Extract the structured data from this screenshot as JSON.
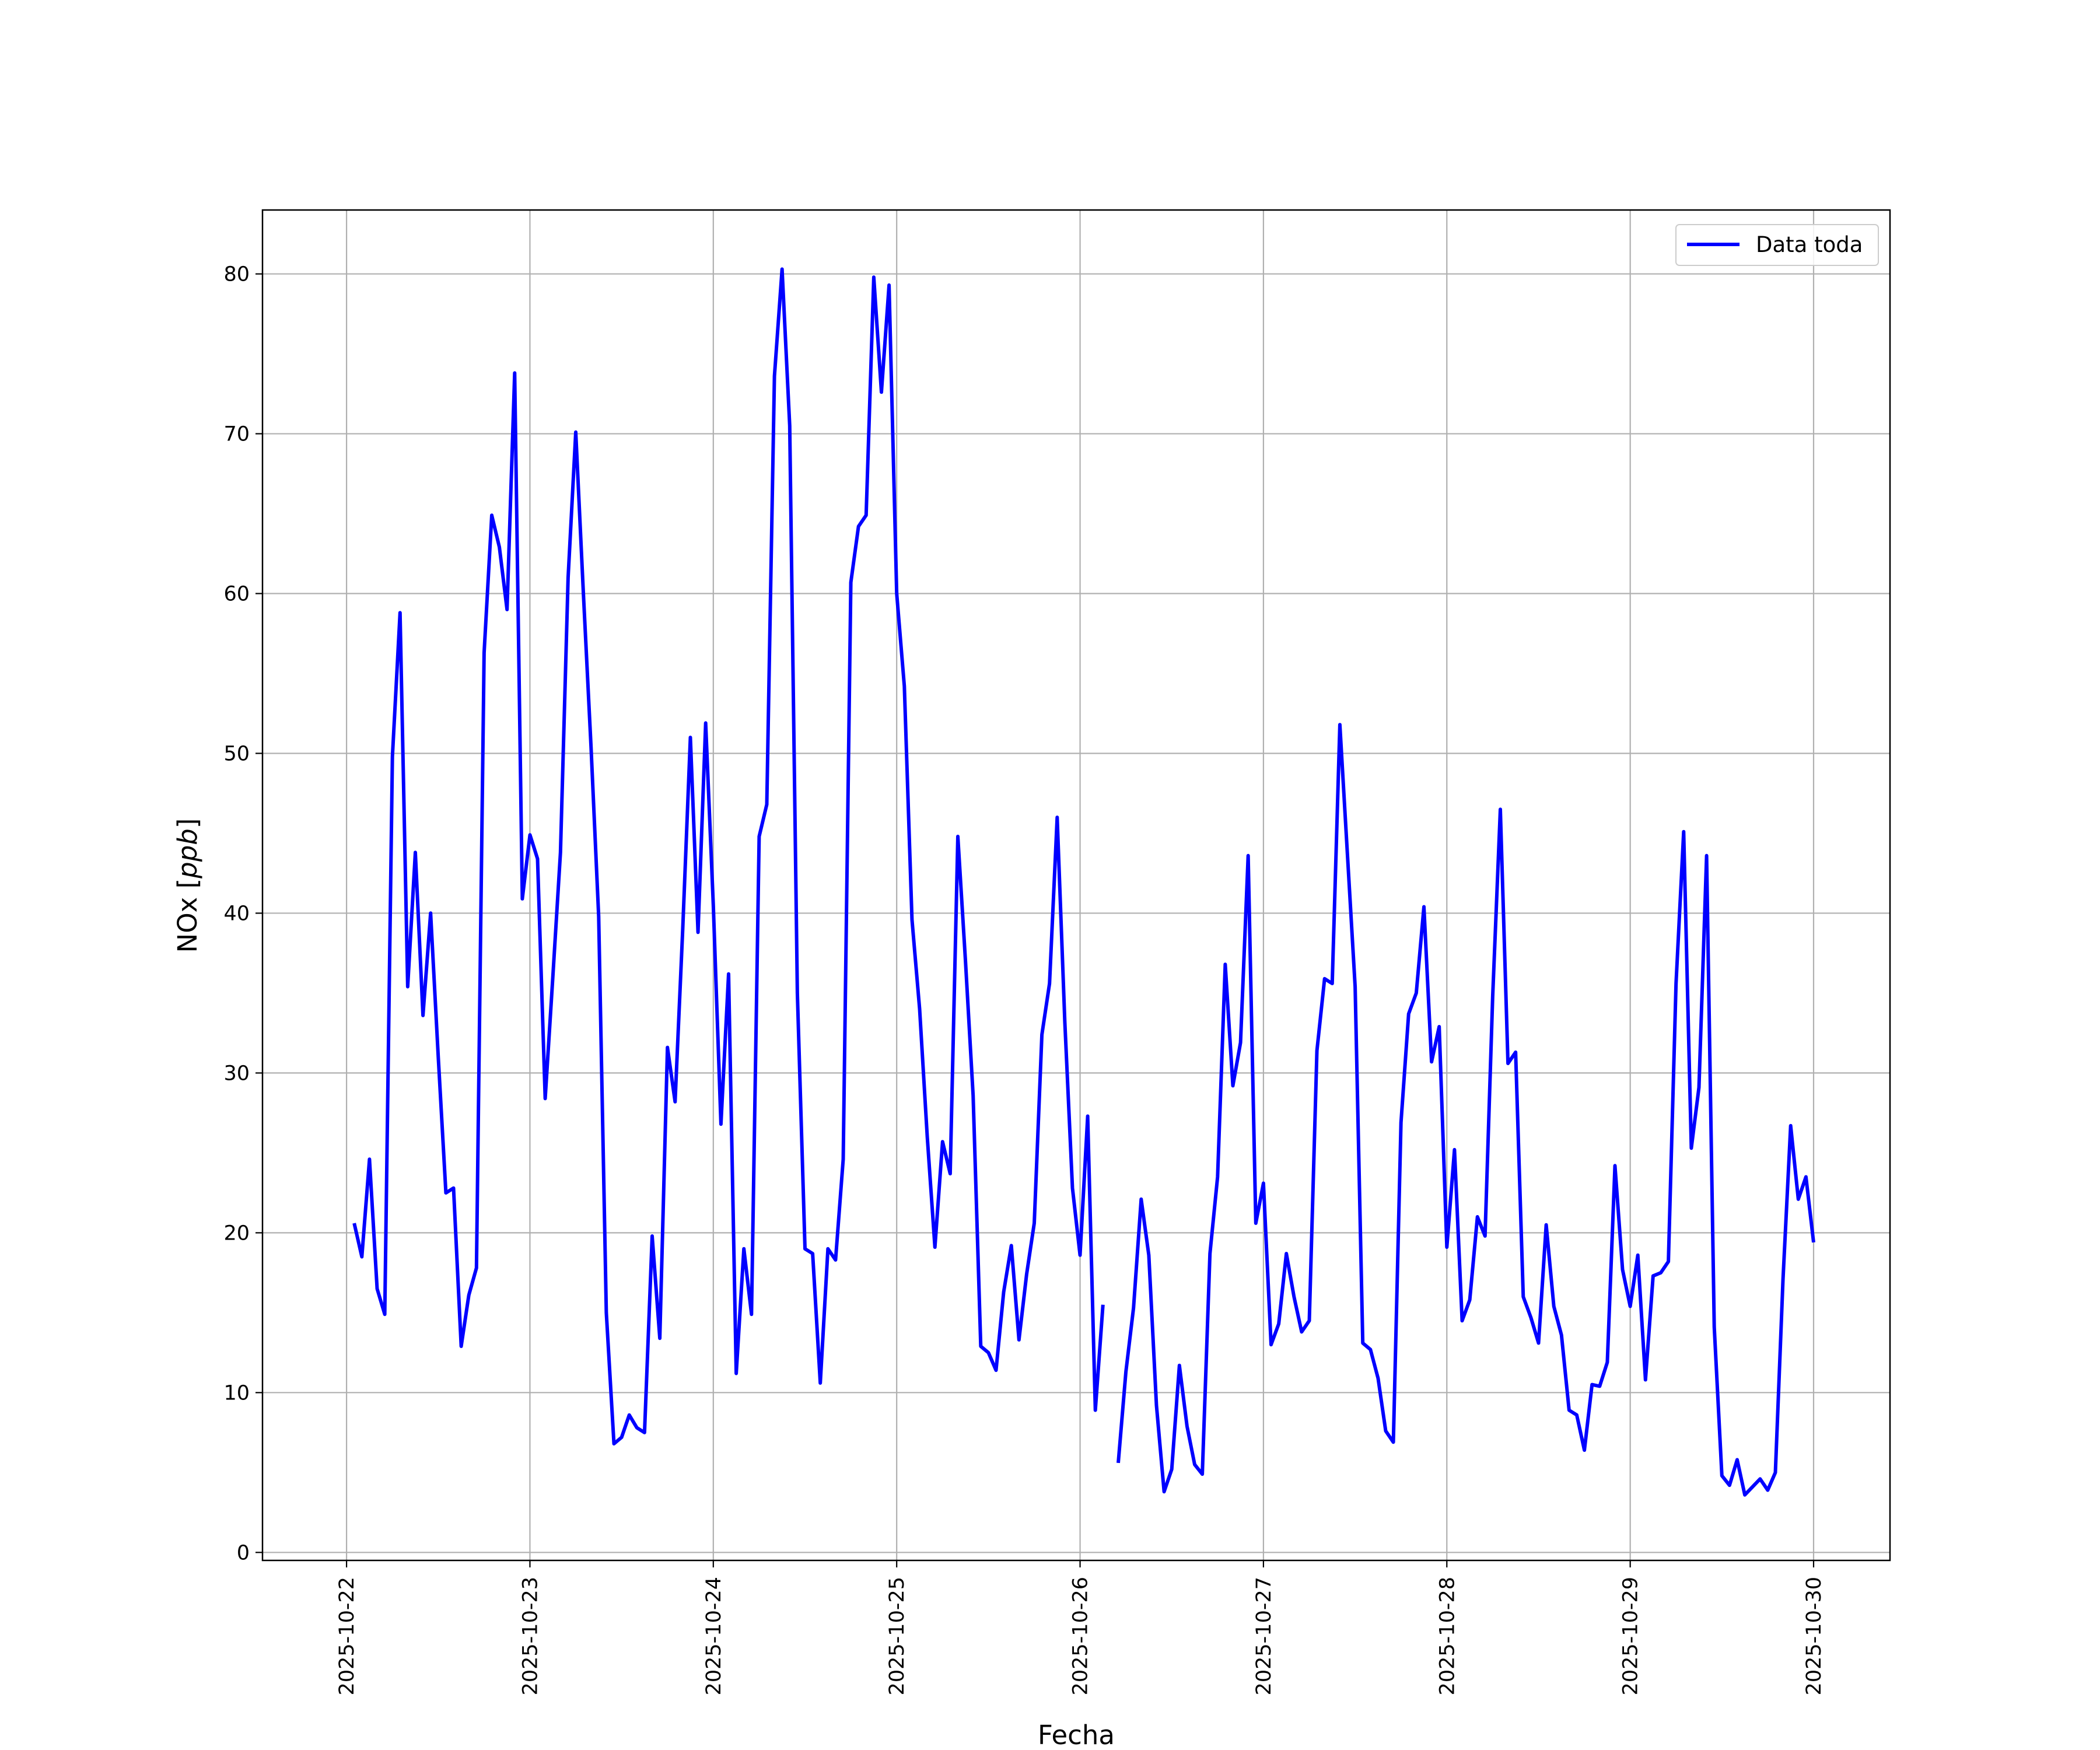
{
  "chart_data": {
    "type": "line",
    "xlabel": "Fecha",
    "ylabel_prefix": "NOx [",
    "ylabel_unit": "ppb",
    "ylabel_suffix": "]",
    "ylim": [
      -0.5,
      84
    ],
    "xlim": [
      "2025-10-21T13:00",
      "2025-10-30T10:00"
    ],
    "grid": true,
    "legend_position": "top-right",
    "y_ticks": [
      0,
      10,
      20,
      30,
      40,
      50,
      60,
      70,
      80
    ],
    "x_ticks": [
      "2025-10-22",
      "2025-10-23",
      "2025-10-24",
      "2025-10-25",
      "2025-10-26",
      "2025-10-27",
      "2025-10-28",
      "2025-10-29",
      "2025-10-30"
    ],
    "series": [
      {
        "name": "Data toda",
        "color": "#0000ff",
        "x": [
          "2025-10-22T01:00",
          "2025-10-22T02:00",
          "2025-10-22T03:00",
          "2025-10-22T04:00",
          "2025-10-22T05:00",
          "2025-10-22T06:00",
          "2025-10-22T07:00",
          "2025-10-22T08:00",
          "2025-10-22T09:00",
          "2025-10-22T10:00",
          "2025-10-22T11:00",
          "2025-10-22T12:00",
          "2025-10-22T13:00",
          "2025-10-22T14:00",
          "2025-10-22T15:00",
          "2025-10-22T16:00",
          "2025-10-22T17:00",
          "2025-10-22T18:00",
          "2025-10-22T19:00",
          "2025-10-22T20:00",
          "2025-10-22T21:00",
          "2025-10-22T22:00",
          "2025-10-22T23:00",
          "2025-10-23T00:00",
          "2025-10-23T01:00",
          "2025-10-23T02:00",
          "2025-10-23T03:00",
          "2025-10-23T04:00",
          "2025-10-23T05:00",
          "2025-10-23T06:00",
          "2025-10-23T07:00",
          "2025-10-23T08:00",
          "2025-10-23T09:00",
          "2025-10-23T10:00",
          "2025-10-23T11:00",
          "2025-10-23T12:00",
          "2025-10-23T13:00",
          "2025-10-23T14:00",
          "2025-10-23T15:00",
          "2025-10-23T16:00",
          "2025-10-23T17:00",
          "2025-10-23T18:00",
          "2025-10-23T19:00",
          "2025-10-23T20:00",
          "2025-10-23T21:00",
          "2025-10-23T22:00",
          "2025-10-23T23:00",
          "2025-10-24T00:00",
          "2025-10-24T01:00",
          "2025-10-24T02:00",
          "2025-10-24T03:00",
          "2025-10-24T04:00",
          "2025-10-24T05:00",
          "2025-10-24T06:00",
          "2025-10-24T07:00",
          "2025-10-24T08:00",
          "2025-10-24T09:00",
          "2025-10-24T10:00",
          "2025-10-24T11:00",
          "2025-10-24T12:00",
          "2025-10-24T13:00",
          "2025-10-24T14:00",
          "2025-10-24T15:00",
          "2025-10-24T16:00",
          "2025-10-24T17:00",
          "2025-10-24T18:00",
          "2025-10-24T19:00",
          "2025-10-24T20:00",
          "2025-10-24T21:00",
          "2025-10-24T22:00",
          "2025-10-24T23:00",
          "2025-10-25T00:00",
          "2025-10-25T01:00",
          "2025-10-25T02:00",
          "2025-10-25T03:00",
          "2025-10-25T04:00",
          "2025-10-25T05:00",
          "2025-10-25T06:00",
          "2025-10-25T07:00",
          "2025-10-25T08:00",
          "2025-10-25T09:00",
          "2025-10-25T10:00",
          "2025-10-25T11:00",
          "2025-10-25T12:00",
          "2025-10-25T13:00",
          "2025-10-25T14:00",
          "2025-10-25T15:00",
          "2025-10-25T16:00",
          "2025-10-25T17:00",
          "2025-10-25T18:00",
          "2025-10-25T19:00",
          "2025-10-25T20:00",
          "2025-10-25T21:00",
          "2025-10-25T22:00",
          "2025-10-25T23:00",
          "2025-10-26T00:00",
          "2025-10-26T01:00",
          "2025-10-26T02:00",
          "2025-10-26T03:00",
          "2025-10-26T04:00",
          "2025-10-26T05:00",
          "2025-10-26T06:00",
          "2025-10-26T07:00",
          "2025-10-26T08:00",
          "2025-10-26T09:00",
          "2025-10-26T10:00",
          "2025-10-26T11:00",
          "2025-10-26T12:00",
          "2025-10-26T13:00",
          "2025-10-26T14:00",
          "2025-10-26T15:00",
          "2025-10-26T16:00",
          "2025-10-26T17:00",
          "2025-10-26T18:00",
          "2025-10-26T19:00",
          "2025-10-26T20:00",
          "2025-10-26T21:00",
          "2025-10-26T22:00",
          "2025-10-26T23:00",
          "2025-10-27T00:00",
          "2025-10-27T01:00",
          "2025-10-27T02:00",
          "2025-10-27T03:00",
          "2025-10-27T04:00",
          "2025-10-27T05:00",
          "2025-10-27T06:00",
          "2025-10-27T07:00",
          "2025-10-27T08:00",
          "2025-10-27T09:00",
          "2025-10-27T10:00",
          "2025-10-27T11:00",
          "2025-10-27T12:00",
          "2025-10-27T13:00",
          "2025-10-27T14:00",
          "2025-10-27T15:00",
          "2025-10-27T16:00",
          "2025-10-27T17:00",
          "2025-10-27T18:00",
          "2025-10-27T19:00",
          "2025-10-27T20:00",
          "2025-10-27T21:00",
          "2025-10-27T22:00",
          "2025-10-27T23:00",
          "2025-10-28T00:00",
          "2025-10-28T01:00",
          "2025-10-28T02:00",
          "2025-10-28T03:00",
          "2025-10-28T04:00",
          "2025-10-28T05:00",
          "2025-10-28T06:00",
          "2025-10-28T07:00",
          "2025-10-28T08:00",
          "2025-10-28T09:00",
          "2025-10-28T10:00",
          "2025-10-28T11:00",
          "2025-10-28T12:00",
          "2025-10-28T13:00",
          "2025-10-28T14:00",
          "2025-10-28T15:00",
          "2025-10-28T16:00",
          "2025-10-28T17:00",
          "2025-10-28T18:00",
          "2025-10-28T19:00",
          "2025-10-28T20:00",
          "2025-10-28T21:00",
          "2025-10-28T22:00",
          "2025-10-28T23:00",
          "2025-10-29T00:00",
          "2025-10-29T01:00",
          "2025-10-29T02:00",
          "2025-10-29T03:00",
          "2025-10-29T04:00",
          "2025-10-29T05:00",
          "2025-10-29T06:00",
          "2025-10-29T07:00",
          "2025-10-29T08:00",
          "2025-10-29T09:00",
          "2025-10-29T10:00",
          "2025-10-29T11:00",
          "2025-10-29T12:00",
          "2025-10-29T13:00",
          "2025-10-29T14:00",
          "2025-10-29T15:00",
          "2025-10-29T16:00",
          "2025-10-29T17:00",
          "2025-10-29T18:00",
          "2025-10-29T19:00",
          "2025-10-29T20:00",
          "2025-10-29T21:00",
          "2025-10-29T22:00",
          "2025-10-29T23:00",
          "2025-10-30T00:00"
        ],
        "y": [
          20.6,
          18.5,
          24.6,
          16.5,
          14.9,
          49.8,
          58.8,
          35.4,
          43.8,
          33.6,
          40.0,
          31.0,
          22.5,
          22.8,
          12.9,
          16.1,
          17.8,
          56.3,
          64.9,
          62.9,
          59.0,
          73.8,
          40.9,
          44.9,
          43.4,
          28.4,
          36.0,
          43.8,
          61.0,
          70.1,
          60.0,
          50.4,
          39.8,
          15.0,
          6.8,
          7.2,
          8.6,
          7.8,
          7.5,
          19.8,
          13.4,
          31.6,
          28.2,
          39.0,
          51.0,
          38.8,
          51.9,
          40.5,
          26.8,
          36.2,
          11.2,
          19.0,
          14.9,
          44.8,
          46.8,
          73.6,
          80.3,
          70.5,
          35.0,
          19.0,
          18.7,
          10.6,
          19.0,
          18.3,
          24.6,
          60.7,
          64.2,
          64.9,
          79.8,
          72.6,
          79.3,
          60.0,
          54.2,
          39.6,
          34.0,
          26.0,
          19.1,
          25.7,
          23.7,
          44.8,
          37.0,
          28.6,
          12.9,
          12.5,
          11.4,
          16.3,
          19.2,
          13.3,
          17.4,
          20.6,
          32.4,
          35.6,
          46.0,
          33.2,
          22.8,
          18.6,
          27.3,
          8.9,
          15.5,
          null,
          5.6,
          11.3,
          15.3,
          22.1,
          18.6,
          9.2,
          3.8,
          5.2,
          11.7,
          7.9,
          5.5,
          4.9,
          18.7,
          23.5,
          36.8,
          29.2,
          31.9,
          43.6,
          20.6,
          23.1,
          13.0,
          14.3,
          18.7,
          16.0,
          13.8,
          14.5,
          31.4,
          35.9,
          35.6,
          51.8,
          43.6,
          35.4,
          13.1,
          12.7,
          10.9,
          7.6,
          6.9,
          26.9,
          33.7,
          35.0,
          40.4,
          30.7,
          32.9,
          19.1,
          25.2,
          14.5,
          15.8,
          21.0,
          19.8,
          34.8,
          46.5,
          30.6,
          31.3,
          16.0,
          14.7,
          13.1,
          20.5,
          15.4,
          13.6,
          8.9,
          8.6,
          6.4,
          10.5,
          10.4,
          11.9,
          24.2,
          17.7,
          15.4,
          18.6,
          10.8,
          17.3,
          17.5,
          18.2,
          35.6,
          45.1,
          25.3,
          29.1,
          43.6,
          14.1,
          4.8,
          4.2,
          5.8,
          3.6,
          4.1,
          4.6,
          3.9,
          5.0,
          17.1,
          26.7,
          22.1,
          23.5,
          19.4
        ]
      }
    ]
  }
}
